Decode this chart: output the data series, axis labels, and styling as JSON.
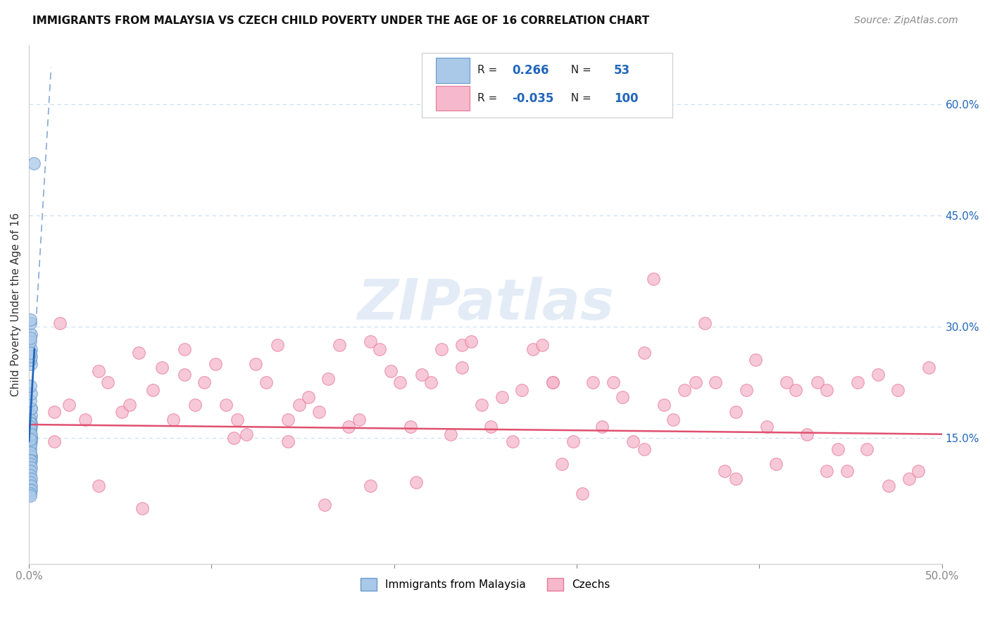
{
  "title": "IMMIGRANTS FROM MALAYSIA VS CZECH CHILD POVERTY UNDER THE AGE OF 16 CORRELATION CHART",
  "source": "Source: ZipAtlas.com",
  "ylabel": "Child Poverty Under the Age of 16",
  "xlim": [
    0.0,
    0.5
  ],
  "ylim": [
    -0.02,
    0.68
  ],
  "xtick_values": [
    0.0,
    0.1,
    0.2,
    0.3,
    0.4,
    0.5
  ],
  "xtick_labels": [
    "0.0%",
    "",
    "",
    "",
    "",
    "50.0%"
  ],
  "right_ytick_values": [
    0.15,
    0.3,
    0.45,
    0.6
  ],
  "right_ytick_labels": [
    "15.0%",
    "30.0%",
    "45.0%",
    "60.0%"
  ],
  "malaysia_color": "#aac8e8",
  "czech_color": "#f5b8cc",
  "malaysia_edge": "#6699cc",
  "czech_edge": "#e87898",
  "trend_malaysia_color": "#2266bb",
  "trend_czech_color": "#e05070",
  "trend_dash_color": "#88aad4",
  "watermark": "ZIPatlas",
  "R_malaysia": 0.266,
  "N_malaysia": 53,
  "R_czech": -0.035,
  "N_czech": 100,
  "grid_color": "#ccddee",
  "background": "#ffffff",
  "malaysia_x": [
    0.0008,
    0.001,
    0.0009,
    0.0011,
    0.0008,
    0.001,
    0.0009,
    0.0008,
    0.001,
    0.0011,
    0.0009,
    0.0008,
    0.001,
    0.0009,
    0.0011,
    0.0008,
    0.001,
    0.0009,
    0.0008,
    0.001,
    0.0009,
    0.0008,
    0.001,
    0.0009,
    0.0011,
    0.0008,
    0.001,
    0.0009,
    0.0008,
    0.001,
    0.0009,
    0.0008,
    0.001,
    0.0009,
    0.0011,
    0.0008,
    0.001,
    0.0009,
    0.0008,
    0.001,
    0.0009,
    0.0008,
    0.001,
    0.0009,
    0.0011,
    0.0008,
    0.001,
    0.0009,
    0.0008,
    0.001,
    0.0009,
    0.0008,
    0.0025
  ],
  "malaysia_y": [
    0.17,
    0.19,
    0.165,
    0.18,
    0.175,
    0.19,
    0.155,
    0.2,
    0.15,
    0.165,
    0.16,
    0.145,
    0.17,
    0.16,
    0.21,
    0.22,
    0.145,
    0.14,
    0.155,
    0.15,
    0.135,
    0.14,
    0.125,
    0.17,
    0.125,
    0.13,
    0.12,
    0.12,
    0.115,
    0.11,
    0.105,
    0.1,
    0.095,
    0.09,
    0.085,
    0.08,
    0.29,
    0.305,
    0.31,
    0.27,
    0.28,
    0.285,
    0.08,
    0.075,
    0.25,
    0.255,
    0.26,
    0.265,
    0.165,
    0.155,
    0.148,
    0.072,
    0.52
  ],
  "czech_x": [
    0.014,
    0.022,
    0.031,
    0.038,
    0.043,
    0.051,
    0.055,
    0.06,
    0.068,
    0.073,
    0.079,
    0.085,
    0.091,
    0.096,
    0.102,
    0.108,
    0.114,
    0.119,
    0.124,
    0.13,
    0.136,
    0.142,
    0.148,
    0.153,
    0.159,
    0.164,
    0.17,
    0.175,
    0.181,
    0.187,
    0.192,
    0.198,
    0.203,
    0.209,
    0.215,
    0.22,
    0.226,
    0.231,
    0.237,
    0.242,
    0.248,
    0.253,
    0.259,
    0.265,
    0.27,
    0.276,
    0.281,
    0.287,
    0.292,
    0.298,
    0.303,
    0.309,
    0.314,
    0.32,
    0.325,
    0.331,
    0.337,
    0.342,
    0.348,
    0.353,
    0.359,
    0.365,
    0.37,
    0.376,
    0.381,
    0.387,
    0.393,
    0.398,
    0.404,
    0.409,
    0.415,
    0.42,
    0.426,
    0.432,
    0.437,
    0.443,
    0.448,
    0.454,
    0.459,
    0.465,
    0.471,
    0.476,
    0.482,
    0.487,
    0.493,
    0.014,
    0.038,
    0.085,
    0.142,
    0.187,
    0.237,
    0.287,
    0.337,
    0.387,
    0.437,
    0.017,
    0.062,
    0.112,
    0.162,
    0.212
  ],
  "czech_y": [
    0.185,
    0.195,
    0.175,
    0.24,
    0.225,
    0.185,
    0.195,
    0.265,
    0.215,
    0.245,
    0.175,
    0.27,
    0.195,
    0.225,
    0.25,
    0.195,
    0.175,
    0.155,
    0.25,
    0.225,
    0.275,
    0.175,
    0.195,
    0.205,
    0.185,
    0.23,
    0.275,
    0.165,
    0.175,
    0.28,
    0.27,
    0.24,
    0.225,
    0.165,
    0.235,
    0.225,
    0.27,
    0.155,
    0.275,
    0.28,
    0.195,
    0.165,
    0.205,
    0.145,
    0.215,
    0.27,
    0.275,
    0.225,
    0.115,
    0.145,
    0.075,
    0.225,
    0.165,
    0.225,
    0.205,
    0.145,
    0.135,
    0.365,
    0.195,
    0.175,
    0.215,
    0.225,
    0.305,
    0.225,
    0.105,
    0.185,
    0.215,
    0.255,
    0.165,
    0.115,
    0.225,
    0.215,
    0.155,
    0.225,
    0.215,
    0.135,
    0.105,
    0.225,
    0.135,
    0.235,
    0.085,
    0.215,
    0.095,
    0.105,
    0.245,
    0.145,
    0.085,
    0.235,
    0.145,
    0.085,
    0.245,
    0.225,
    0.265,
    0.095,
    0.105,
    0.305,
    0.055,
    0.15,
    0.06,
    0.09
  ]
}
